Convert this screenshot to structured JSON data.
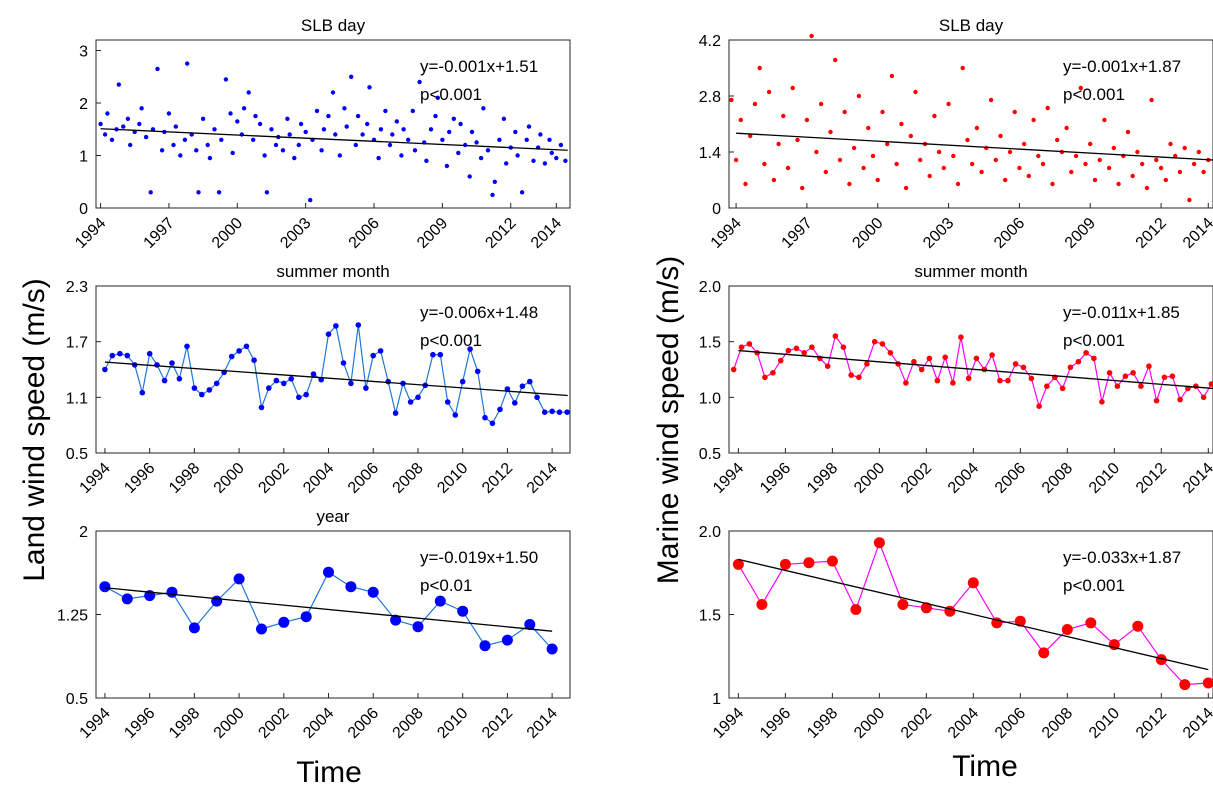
{
  "labels": {
    "left_ylabel": "Land wind speed (m/s)",
    "right_ylabel": "Marine wind speed (m/s)",
    "left_xlabel": "Time",
    "right_xlabel": "Time"
  },
  "colors": {
    "land_marker": "#0000ff",
    "land_line": "#1f77d4",
    "marine_marker": "#ff0000",
    "marine_line": "#ff00ff",
    "trend": "#000000"
  },
  "chart_data": [
    {
      "type": "scatter",
      "id": "land-day",
      "title": "SLB day",
      "xlim": [
        1993.8,
        2014.6
      ],
      "ylim": [
        0,
        3.2
      ],
      "yticks": [
        0,
        1,
        2,
        3
      ],
      "yticklabels": [
        "0",
        "1",
        "2",
        "3"
      ],
      "xticks": [
        1994,
        1997,
        2000,
        2003,
        2006,
        2009,
        2012,
        2014
      ],
      "xticklabels": [
        "1994",
        "1997",
        "2000",
        "2003",
        "2006",
        "2009",
        "2012",
        "2014"
      ],
      "annotation": [
        "y=-0.001x+1.51",
        "p<0.001"
      ],
      "trend": [
        [
          1994,
          1.51
        ],
        [
          2014.5,
          1.1
        ]
      ],
      "x": [
        1994.0,
        1994.2,
        1994.3,
        1994.5,
        1994.7,
        1994.8,
        1995.0,
        1995.2,
        1995.3,
        1995.5,
        1995.7,
        1995.8,
        1996.0,
        1996.2,
        1996.3,
        1996.5,
        1996.7,
        1996.8,
        1997.0,
        1997.2,
        1997.3,
        1997.5,
        1997.7,
        1997.8,
        1998.0,
        1998.2,
        1998.3,
        1998.5,
        1998.7,
        1998.8,
        1999.0,
        1999.2,
        1999.3,
        1999.5,
        1999.7,
        1999.8,
        2000.0,
        2000.2,
        2000.3,
        2000.5,
        2000.7,
        2000.8,
        2001.0,
        2001.2,
        2001.3,
        2001.5,
        2001.7,
        2001.8,
        2002.0,
        2002.2,
        2002.3,
        2002.5,
        2002.7,
        2002.8,
        2003.0,
        2003.2,
        2003.3,
        2003.5,
        2003.7,
        2003.8,
        2004.0,
        2004.2,
        2004.3,
        2004.5,
        2004.7,
        2004.8,
        2005.0,
        2005.2,
        2005.3,
        2005.5,
        2005.7,
        2005.8,
        2006.0,
        2006.2,
        2006.3,
        2006.5,
        2006.7,
        2006.8,
        2007.0,
        2007.2,
        2007.3,
        2007.5,
        2007.7,
        2007.8,
        2008.0,
        2008.2,
        2008.3,
        2008.5,
        2008.7,
        2008.8,
        2009.0,
        2009.2,
        2009.3,
        2009.5,
        2009.7,
        2009.8,
        2010.0,
        2010.2,
        2010.3,
        2010.5,
        2010.7,
        2010.8,
        2011.0,
        2011.2,
        2011.3,
        2011.5,
        2011.7,
        2011.8,
        2012.0,
        2012.2,
        2012.3,
        2012.5,
        2012.7,
        2012.8,
        2013.0,
        2013.2,
        2013.3,
        2013.5,
        2013.7,
        2013.8,
        2014.0,
        2014.2,
        2014.4
      ],
      "y": [
        1.6,
        1.4,
        1.8,
        1.3,
        1.5,
        2.35,
        1.55,
        1.7,
        1.2,
        1.45,
        1.6,
        1.9,
        1.35,
        0.3,
        1.5,
        2.65,
        1.1,
        1.45,
        1.8,
        1.2,
        1.55,
        1.0,
        1.3,
        2.75,
        1.4,
        1.1,
        0.3,
        1.7,
        1.2,
        0.95,
        1.5,
        0.3,
        1.3,
        2.45,
        1.8,
        1.05,
        1.65,
        1.4,
        1.9,
        2.2,
        1.3,
        1.75,
        1.6,
        1.0,
        0.3,
        1.5,
        1.2,
        1.35,
        1.1,
        1.7,
        1.4,
        0.95,
        1.2,
        1.6,
        1.45,
        0.15,
        1.3,
        1.85,
        1.1,
        1.5,
        1.75,
        2.2,
        1.4,
        1.0,
        1.9,
        1.55,
        2.5,
        1.2,
        1.75,
        1.4,
        1.6,
        2.3,
        1.3,
        0.95,
        1.5,
        1.85,
        1.2,
        1.4,
        1.65,
        1.0,
        1.5,
        1.3,
        1.85,
        1.1,
        2.4,
        1.25,
        0.9,
        1.5,
        1.75,
        2.1,
        1.3,
        0.8,
        1.45,
        1.7,
        1.05,
        1.6,
        1.2,
        0.6,
        1.45,
        1.25,
        0.95,
        1.9,
        1.1,
        0.25,
        0.5,
        1.3,
        1.7,
        0.85,
        1.15,
        1.45,
        1.0,
        0.3,
        1.3,
        1.55,
        0.9,
        1.15,
        1.4,
        0.85,
        1.3,
        1.05,
        0.95,
        1.2,
        0.9
      ]
    },
    {
      "type": "scatter",
      "id": "marine-day",
      "title": "SLB day",
      "xlim": [
        1993.7,
        2014.2
      ],
      "ylim": [
        0,
        4.2
      ],
      "yticks": [
        0,
        1.4,
        2.8,
        4.2
      ],
      "yticklabels": [
        "0",
        "1.4",
        "2.8",
        "4.2"
      ],
      "xticks": [
        1994,
        1997,
        2000,
        2003,
        2006,
        2009,
        2012,
        2014
      ],
      "xticklabels": [
        "1994",
        "1997",
        "2000",
        "2003",
        "2006",
        "2009",
        "2012",
        "2014"
      ],
      "annotation": [
        "y=-0.001x+1.87",
        "p<0.001"
      ],
      "trend": [
        [
          1994,
          1.87
        ],
        [
          2014.2,
          1.2
        ]
      ],
      "x": [
        1993.8,
        1994.0,
        1994.2,
        1994.4,
        1994.6,
        1994.8,
        1995.0,
        1995.2,
        1995.4,
        1995.6,
        1995.8,
        1996.0,
        1996.2,
        1996.4,
        1996.6,
        1996.8,
        1997.0,
        1997.2,
        1997.4,
        1997.6,
        1997.8,
        1998.0,
        1998.2,
        1998.4,
        1998.6,
        1998.8,
        1999.0,
        1999.2,
        1999.4,
        1999.6,
        1999.8,
        2000.0,
        2000.2,
        2000.4,
        2000.6,
        2000.8,
        2001.0,
        2001.2,
        2001.4,
        2001.6,
        2001.8,
        2002.0,
        2002.2,
        2002.4,
        2002.6,
        2002.8,
        2003.0,
        2003.2,
        2003.4,
        2003.6,
        2003.8,
        2004.0,
        2004.2,
        2004.4,
        2004.6,
        2004.8,
        2005.0,
        2005.2,
        2005.4,
        2005.6,
        2005.8,
        2006.0,
        2006.2,
        2006.4,
        2006.6,
        2006.8,
        2007.0,
        2007.2,
        2007.4,
        2007.6,
        2007.8,
        2008.0,
        2008.2,
        2008.4,
        2008.6,
        2008.8,
        2009.0,
        2009.2,
        2009.4,
        2009.6,
        2009.8,
        2010.0,
        2010.2,
        2010.4,
        2010.6,
        2010.8,
        2011.0,
        2011.2,
        2011.4,
        2011.6,
        2011.8,
        2012.0,
        2012.2,
        2012.4,
        2012.6,
        2012.8,
        2013.0,
        2013.2,
        2013.4,
        2013.6,
        2013.8,
        2014.0
      ],
      "y": [
        2.7,
        1.2,
        2.2,
        0.6,
        1.8,
        2.6,
        3.5,
        1.1,
        2.9,
        0.7,
        1.6,
        2.3,
        1.0,
        3.0,
        1.7,
        0.5,
        2.2,
        4.3,
        1.4,
        2.6,
        0.9,
        1.9,
        3.7,
        1.2,
        2.4,
        0.6,
        1.5,
        2.8,
        1.0,
        2.0,
        1.3,
        0.7,
        2.4,
        1.6,
        3.3,
        1.1,
        2.1,
        0.5,
        1.8,
        2.9,
        1.2,
        1.6,
        0.8,
        2.3,
        1.4,
        1.0,
        2.6,
        1.3,
        0.6,
        3.5,
        1.7,
        1.1,
        2.0,
        0.9,
        1.5,
        2.7,
        1.2,
        1.8,
        0.7,
        1.4,
        2.4,
        1.0,
        1.6,
        0.8,
        2.2,
        1.3,
        1.1,
        2.5,
        0.6,
        1.7,
        1.4,
        2.0,
        0.9,
        1.3,
        3.0,
        1.1,
        1.6,
        0.7,
        1.2,
        2.2,
        1.0,
        1.5,
        0.6,
        1.3,
        1.9,
        0.8,
        1.4,
        1.1,
        0.5,
        2.7,
        1.2,
        1.0,
        0.7,
        1.6,
        1.3,
        0.9,
        1.5,
        0.2,
        1.1,
        1.4,
        0.9,
        1.2
      ]
    },
    {
      "type": "line",
      "id": "land-month",
      "title": "summer month",
      "xlim": [
        1993.6,
        2014.8
      ],
      "ylim": [
        0.5,
        2.3
      ],
      "yticks": [
        0.5,
        1.1,
        1.7,
        2.3
      ],
      "yticklabels": [
        "0.5",
        "1.1",
        "1.7",
        "2.3"
      ],
      "xticks": [
        1994,
        1996,
        1998,
        2000,
        2002,
        2004,
        2006,
        2008,
        2010,
        2012,
        2014
      ],
      "xticklabels": [
        "1994",
        "1996",
        "1998",
        "2000",
        "2002",
        "2004",
        "2006",
        "2008",
        "2010",
        "2012",
        "2014"
      ],
      "annotation": [
        "y=-0.006x+1.48",
        "p<0.001"
      ],
      "trend": [
        [
          1994,
          1.48
        ],
        [
          2014.7,
          1.12
        ]
      ],
      "x": [
        1994.0,
        1994.33,
        1994.67,
        1995.0,
        1995.33,
        1995.67,
        1996.0,
        1996.33,
        1996.67,
        1997.0,
        1997.33,
        1997.67,
        1998.0,
        1998.33,
        1998.67,
        1999.0,
        1999.33,
        1999.67,
        2000.0,
        2000.33,
        2000.67,
        2001.0,
        2001.33,
        2001.67,
        2002.0,
        2002.33,
        2002.67,
        2003.0,
        2003.33,
        2003.67,
        2004.0,
        2004.33,
        2004.67,
        2005.0,
        2005.33,
        2005.67,
        2006.0,
        2006.33,
        2006.67,
        2007.0,
        2007.33,
        2007.67,
        2008.0,
        2008.33,
        2008.67,
        2009.0,
        2009.33,
        2009.67,
        2010.0,
        2010.33,
        2010.67,
        2011.0,
        2011.33,
        2011.67,
        2012.0,
        2012.33,
        2012.67,
        2013.0,
        2013.33,
        2013.67,
        2014.0,
        2014.33,
        2014.67
      ],
      "y": [
        1.4,
        1.55,
        1.57,
        1.55,
        1.45,
        1.15,
        1.57,
        1.45,
        1.28,
        1.47,
        1.3,
        1.65,
        1.2,
        1.13,
        1.18,
        1.25,
        1.37,
        1.54,
        1.6,
        1.65,
        1.5,
        0.99,
        1.2,
        1.28,
        1.25,
        1.3,
        1.1,
        1.13,
        1.35,
        1.29,
        1.78,
        1.87,
        1.47,
        1.25,
        1.88,
        1.2,
        1.55,
        1.6,
        1.27,
        0.93,
        1.25,
        1.05,
        1.1,
        1.23,
        1.56,
        1.56,
        1.05,
        0.91,
        1.27,
        1.62,
        1.38,
        0.88,
        0.82,
        0.97,
        1.19,
        1.04,
        1.22,
        1.27,
        1.1,
        0.94,
        0.95,
        0.94,
        0.94
      ]
    },
    {
      "type": "line",
      "id": "marine-month",
      "title": "summer month",
      "xlim": [
        1993.6,
        2014.2
      ],
      "ylim": [
        0.5,
        2.0
      ],
      "yticks": [
        0.5,
        1.0,
        1.5,
        2.0
      ],
      "yticklabels": [
        "0.5",
        "1.0",
        "1.5",
        "2.0"
      ],
      "xticks": [
        1994,
        1996,
        1998,
        2000,
        2002,
        2004,
        2006,
        2008,
        2010,
        2012,
        2014
      ],
      "xticklabels": [
        "1994",
        "1996",
        "1998",
        "2000",
        "2002",
        "2004",
        "2006",
        "2008",
        "2010",
        "2012",
        "2014"
      ],
      "annotation": [
        "y=-0.011x+1.85",
        "p<0.001"
      ],
      "trend": [
        [
          1994,
          1.42
        ],
        [
          2014.2,
          1.08
        ]
      ],
      "x": [
        1993.8,
        1994.13,
        1994.47,
        1994.8,
        1995.13,
        1995.47,
        1995.8,
        1996.13,
        1996.47,
        1996.8,
        1997.13,
        1997.47,
        1997.8,
        1998.13,
        1998.47,
        1998.8,
        1999.13,
        1999.47,
        1999.8,
        2000.13,
        2000.47,
        2000.8,
        2001.13,
        2001.47,
        2001.8,
        2002.13,
        2002.47,
        2002.8,
        2003.13,
        2003.47,
        2003.8,
        2004.13,
        2004.47,
        2004.8,
        2005.13,
        2005.47,
        2005.8,
        2006.13,
        2006.47,
        2006.8,
        2007.13,
        2007.47,
        2007.8,
        2008.13,
        2008.47,
        2008.8,
        2009.13,
        2009.47,
        2009.8,
        2010.13,
        2010.47,
        2010.8,
        2011.13,
        2011.47,
        2011.8,
        2012.13,
        2012.47,
        2012.8,
        2013.13,
        2013.47,
        2013.8,
        2014.13
      ],
      "y": [
        1.25,
        1.45,
        1.48,
        1.4,
        1.18,
        1.22,
        1.33,
        1.42,
        1.44,
        1.4,
        1.45,
        1.35,
        1.28,
        1.55,
        1.45,
        1.2,
        1.18,
        1.3,
        1.5,
        1.48,
        1.4,
        1.3,
        1.13,
        1.32,
        1.25,
        1.35,
        1.15,
        1.36,
        1.13,
        1.54,
        1.17,
        1.35,
        1.25,
        1.38,
        1.15,
        1.15,
        1.3,
        1.27,
        1.17,
        0.92,
        1.1,
        1.18,
        1.08,
        1.27,
        1.32,
        1.4,
        1.35,
        0.96,
        1.22,
        1.1,
        1.19,
        1.22,
        1.1,
        1.28,
        0.97,
        1.18,
        1.19,
        0.98,
        1.08,
        1.1,
        1.0,
        1.12
      ]
    },
    {
      "type": "line",
      "id": "land-year",
      "title": "year",
      "xlim": [
        1993.6,
        2014.8
      ],
      "ylim": [
        0.5,
        2.0
      ],
      "yticks": [
        0.5,
        1.25,
        2.0
      ],
      "yticklabels": [
        "0.5",
        "1.25",
        "2"
      ],
      "xticks": [
        1994,
        1996,
        1998,
        2000,
        2002,
        2004,
        2006,
        2008,
        2010,
        2012,
        2014
      ],
      "xticklabels": [
        "1994",
        "1996",
        "1998",
        "2000",
        "2002",
        "2004",
        "2006",
        "2008",
        "2010",
        "2012",
        "2014"
      ],
      "annotation": [
        "y=-0.019x+1.50",
        "p<0.01"
      ],
      "trend": [
        [
          1994,
          1.49
        ],
        [
          2014,
          1.1
        ]
      ],
      "x": [
        1994,
        1995,
        1996,
        1997,
        1998,
        1999,
        2000,
        2001,
        2002,
        2003,
        2004,
        2005,
        2006,
        2007,
        2008,
        2009,
        2010,
        2011,
        2012,
        2013,
        2014
      ],
      "y": [
        1.5,
        1.39,
        1.42,
        1.45,
        1.13,
        1.37,
        1.57,
        1.12,
        1.18,
        1.23,
        1.63,
        1.5,
        1.45,
        1.2,
        1.14,
        1.37,
        1.28,
        0.97,
        1.02,
        1.16,
        0.94
      ]
    },
    {
      "type": "line",
      "id": "marine-year",
      "title": "",
      "xlim": [
        1993.6,
        2014.2
      ],
      "ylim": [
        1.0,
        2.0
      ],
      "yticks": [
        1.0,
        1.5,
        2.0
      ],
      "yticklabels": [
        "1",
        "1.5",
        "2.0"
      ],
      "xticks": [
        1994,
        1996,
        1998,
        2000,
        2002,
        2004,
        2006,
        2008,
        2010,
        2012,
        2014
      ],
      "xticklabels": [
        "1994",
        "1996",
        "1998",
        "2000",
        "2002",
        "2004",
        "2006",
        "2008",
        "2010",
        "2012",
        "2014"
      ],
      "annotation": [
        "y=-0.033x+1.87",
        "p<0.001"
      ],
      "trend": [
        [
          1994,
          1.83
        ],
        [
          2014,
          1.17
        ]
      ],
      "x": [
        1994,
        1995,
        1996,
        1997,
        1998,
        1999,
        2000,
        2001,
        2002,
        2003,
        2004,
        2005,
        2006,
        2007,
        2008,
        2009,
        2010,
        2011,
        2012,
        2013,
        2014
      ],
      "y": [
        1.8,
        1.56,
        1.8,
        1.81,
        1.82,
        1.53,
        1.93,
        1.56,
        1.54,
        1.52,
        1.69,
        1.45,
        1.46,
        1.27,
        1.41,
        1.45,
        1.32,
        1.43,
        1.23,
        1.08,
        1.09
      ]
    }
  ]
}
